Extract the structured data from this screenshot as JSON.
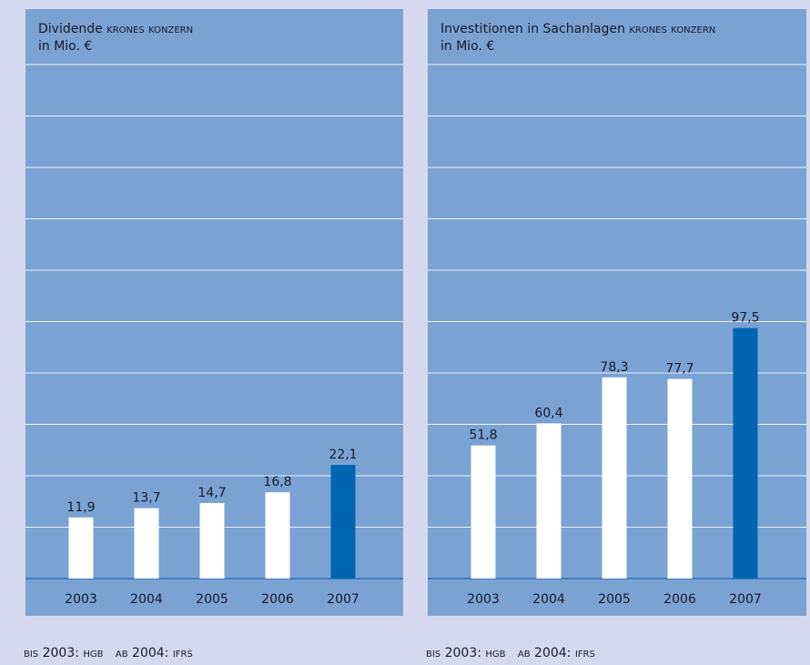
{
  "chart_data": [
    {
      "type": "bar",
      "title": "Dividende",
      "title_brand": "krones konzern",
      "subtitle": "in Mio. €",
      "categories": [
        "2003",
        "2004",
        "2005",
        "2006",
        "2007"
      ],
      "values": [
        11.9,
        13.7,
        14.7,
        16.8,
        22.1
      ],
      "value_labels": [
        "11,9",
        "13,7",
        "14,7",
        "16,8",
        "22,1"
      ],
      "colors": [
        "#ffffff",
        "#ffffff",
        "#ffffff",
        "#ffffff",
        "#0065b1"
      ],
      "ylim": [
        0,
        100
      ],
      "yticks": [
        0,
        10,
        20,
        30,
        40,
        50,
        60,
        70,
        80,
        90,
        100
      ],
      "grid": true,
      "note": "bis 2003: hgb   ab 2004: ifrs"
    },
    {
      "type": "bar",
      "title": "Investitionen in Sachanlagen",
      "title_brand": "krones konzern",
      "subtitle": "in Mio. €",
      "categories": [
        "2003",
        "2004",
        "2005",
        "2006",
        "2007"
      ],
      "values": [
        51.8,
        60.4,
        78.3,
        77.7,
        97.5
      ],
      "value_labels": [
        "51,8",
        "60,4",
        "78,3",
        "77,7",
        "97,5"
      ],
      "colors": [
        "#ffffff",
        "#ffffff",
        "#ffffff",
        "#ffffff",
        "#0065b1"
      ],
      "ylim": [
        0,
        200
      ],
      "yticks": [
        0,
        20,
        40,
        60,
        80,
        100,
        120,
        140,
        160,
        180,
        200
      ],
      "grid": true,
      "note": "bis 2003: hgb   ab 2004: ifrs"
    }
  ]
}
